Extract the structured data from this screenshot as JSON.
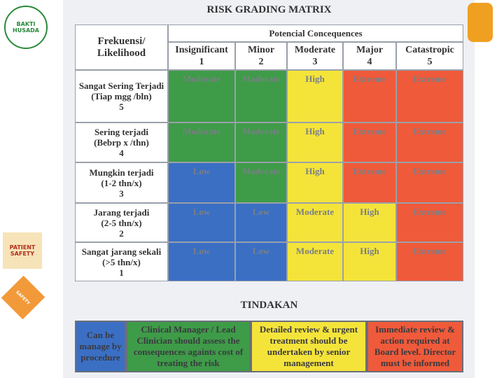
{
  "logos": {
    "top": "BAKTI HUSADA",
    "middle": "PATIENT SAFETY",
    "lower": "SAFETY"
  },
  "matrix": {
    "title": "RISK GRADING MATRIX",
    "row_header": "Frekuensi/ Likelihood",
    "column_group": "Potencial Concequences",
    "columns": [
      {
        "name": "Insignificant",
        "level": 1
      },
      {
        "name": "Minor",
        "level": 2
      },
      {
        "name": "Moderate",
        "level": 3
      },
      {
        "name": "Major",
        "level": 4
      },
      {
        "name": "Catastropic",
        "level": 5
      }
    ],
    "rows": [
      {
        "label": "Sangat Sering Terjadi",
        "detail": "(Tiap mgg /bln)",
        "level": 5,
        "cells": [
          "Moderate",
          "Moderate",
          "High",
          "Extreme",
          "Extreme"
        ],
        "colors": [
          "#3e9b48",
          "#3e9b48",
          "#f4e43a",
          "#ef5a3a",
          "#ef5a3a"
        ]
      },
      {
        "label": "Sering terjadi",
        "detail": "(Bebrp x /thn)",
        "level": 4,
        "cells": [
          "Moderate",
          "Moderate",
          "High",
          "Extreme",
          "Extreme"
        ],
        "colors": [
          "#3e9b48",
          "#3e9b48",
          "#f4e43a",
          "#ef5a3a",
          "#ef5a3a"
        ]
      },
      {
        "label": "Mungkin terjadi",
        "detail": "(1-2 thn/x)",
        "level": 3,
        "cells": [
          "Low",
          "Moderate",
          "High",
          "Extreme",
          "Extreme"
        ],
        "colors": [
          "#3a6fc4",
          "#3e9b48",
          "#f4e43a",
          "#ef5a3a",
          "#ef5a3a"
        ]
      },
      {
        "label": "Jarang terjadi",
        "detail": "(2-5 thn/x)",
        "level": 2,
        "cells": [
          "Low",
          "Low",
          "Moderate",
          "High",
          "Extreme"
        ],
        "colors": [
          "#3a6fc4",
          "#3a6fc4",
          "#f4e43a",
          "#f4e43a",
          "#ef5a3a"
        ]
      },
      {
        "label": "Sangat jarang sekali",
        "detail": "(>5 thn/x)",
        "level": 1,
        "cells": [
          "Low",
          "Low",
          "Moderate",
          "High",
          "Extreme"
        ],
        "colors": [
          "#3a6fc4",
          "#3a6fc4",
          "#f4e43a",
          "#f4e43a",
          "#ef5a3a"
        ]
      }
    ]
  },
  "actions": {
    "title": "TINDAKAN",
    "items": [
      {
        "text": "Can be manage by procedure",
        "color": "#3a6fc4"
      },
      {
        "text": "Clinical Manager / Lead Clinician should assess the consequences againts cost of treating the risk",
        "color": "#3e9b48"
      },
      {
        "text": "Detailed review & urgent treatment should be undertaken by senior management",
        "color": "#f4e43a"
      },
      {
        "text": "Immediate review & action required at Board level. Director must be informed",
        "color": "#ef5a3a"
      }
    ]
  }
}
